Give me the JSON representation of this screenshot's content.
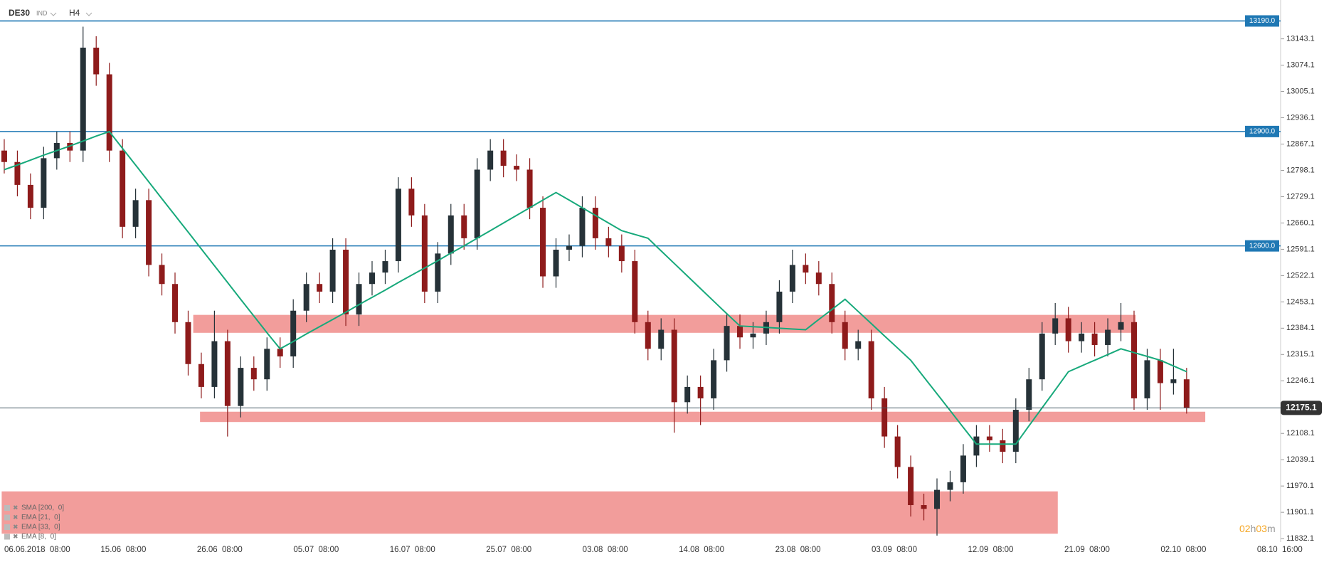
{
  "chart_data": {
    "type": "candlestick",
    "symbol": "DE30",
    "symbol_tag": "IND",
    "interval": "H4",
    "x_labels": [
      "06.06.2018  08:00",
      "15.06  08:00",
      "26.06  08:00",
      "05.07  08:00",
      "16.07  08:00",
      "25.07  08:00",
      "03.08  08:00",
      "14.08  08:00",
      "23.08  08:00",
      "03.09  08:00",
      "12.09  08:00",
      "21.09  08:00",
      "02.10  08:00",
      "08.10  16:00"
    ],
    "open": [
      12850,
      12820,
      12760,
      12700,
      12830,
      12870,
      12850,
      13120,
      13050,
      12850,
      12650,
      12720,
      12550,
      12500,
      12400,
      12290,
      12230,
      12350,
      12180,
      12280,
      12250,
      12330,
      12310,
      12430,
      12500,
      12480,
      12590,
      12420,
      12500,
      12530,
      12560,
      12750,
      12680,
      12480,
      12580,
      12680,
      12620,
      12800,
      12850,
      12810,
      12800,
      12700,
      12520,
      12590,
      12600,
      12700,
      12620,
      12600,
      12560,
      12400,
      12330,
      12380,
      12190,
      12230,
      12200,
      12300,
      12390,
      12360,
      12370,
      12400,
      12480,
      12550,
      12530,
      12500,
      12400,
      12330,
      12350,
      12200,
      12100,
      12020,
      11920,
      11910,
      11960,
      11980,
      12050,
      12100,
      12090,
      12060,
      12170,
      12250,
      12370,
      12410,
      12350,
      12370,
      12340,
      12380,
      12400,
      12200,
      12300,
      12240,
      12250
    ],
    "high": [
      12880,
      12850,
      12790,
      12860,
      12900,
      12900,
      13175,
      13150,
      13080,
      12880,
      12750,
      12750,
      12580,
      12530,
      12430,
      12320,
      12430,
      12380,
      12310,
      12310,
      12360,
      12360,
      12460,
      12530,
      12530,
      12620,
      12620,
      12530,
      12560,
      12590,
      12780,
      12780,
      12710,
      12610,
      12710,
      12710,
      12830,
      12880,
      12880,
      12840,
      12830,
      12730,
      12620,
      12630,
      12730,
      12730,
      12650,
      12630,
      12590,
      12430,
      12410,
      12410,
      12260,
      12260,
      12330,
      12420,
      12420,
      12400,
      12430,
      12510,
      12590,
      12580,
      12560,
      12530,
      12430,
      12380,
      12380,
      12230,
      12130,
      12050,
      11950,
      11990,
      12010,
      12080,
      12130,
      12130,
      12120,
      12200,
      12280,
      12400,
      12450,
      12440,
      12400,
      12400,
      12410,
      12450,
      12430,
      12330,
      12330,
      12330,
      12280
    ],
    "low": [
      12790,
      12730,
      12670,
      12670,
      12800,
      12820,
      12820,
      13020,
      12820,
      12620,
      12620,
      12520,
      12470,
      12370,
      12260,
      12200,
      12200,
      12100,
      12150,
      12220,
      12220,
      12280,
      12280,
      12400,
      12450,
      12450,
      12390,
      12390,
      12470,
      12500,
      12530,
      12650,
      12450,
      12450,
      12550,
      12590,
      12590,
      12770,
      12780,
      12770,
      12670,
      12490,
      12490,
      12560,
      12570,
      12590,
      12570,
      12530,
      12370,
      12300,
      12300,
      12110,
      12160,
      12130,
      12170,
      12270,
      12330,
      12330,
      12340,
      12370,
      12450,
      12500,
      12470,
      12370,
      12300,
      12300,
      12170,
      12070,
      11990,
      11890,
      11880,
      11840,
      11930,
      11950,
      12020,
      12060,
      12030,
      12030,
      12140,
      12220,
      12340,
      12320,
      12320,
      12310,
      12310,
      12350,
      12170,
      12170,
      12170,
      12210,
      12160
    ],
    "close": [
      12820,
      12760,
      12700,
      12830,
      12870,
      12850,
      13120,
      13050,
      12850,
      12650,
      12720,
      12550,
      12500,
      12400,
      12290,
      12230,
      12350,
      12180,
      12280,
      12250,
      12330,
      12310,
      12430,
      12500,
      12480,
      12590,
      12420,
      12500,
      12530,
      12560,
      12750,
      12680,
      12480,
      12580,
      12680,
      12620,
      12800,
      12850,
      12810,
      12800,
      12700,
      12520,
      12590,
      12600,
      12700,
      12620,
      12600,
      12560,
      12400,
      12330,
      12380,
      12190,
      12230,
      12200,
      12300,
      12390,
      12360,
      12370,
      12400,
      12480,
      12550,
      12530,
      12500,
      12400,
      12330,
      12350,
      12200,
      12100,
      12020,
      11920,
      11910,
      11960,
      11980,
      12050,
      12100,
      12090,
      12060,
      12170,
      12250,
      12370,
      12410,
      12350,
      12370,
      12340,
      12380,
      12400,
      12200,
      12300,
      12240,
      12250,
      12175
    ],
    "up_color": "#263238",
    "down_color": "#8e1b1b",
    "ema": {
      "color": "#17a97b",
      "values": [
        12800,
        12812,
        12825,
        12838,
        12850,
        12862,
        12875,
        12888,
        12900,
        12856,
        12812,
        12768,
        12724,
        12680,
        12636,
        12592,
        12548,
        12504,
        12460,
        12416,
        12372,
        12330,
        12349,
        12369,
        12388,
        12407,
        12426,
        12446,
        12465,
        12484,
        12504,
        12523,
        12542,
        12561,
        12581,
        12600,
        12620,
        12640,
        12660,
        12680,
        12700,
        12720,
        12740,
        12720,
        12700,
        12680,
        12660,
        12640,
        12630,
        12620,
        12587,
        12554,
        12521,
        12488,
        12455,
        12422,
        12390,
        12388,
        12386,
        12384,
        12382,
        12380,
        12407,
        12433,
        12460,
        12428,
        12396,
        12364,
        12332,
        12300,
        12256,
        12212,
        12168,
        12124,
        12080,
        12080,
        12080,
        12080,
        12128,
        12175,
        12222,
        12270,
        12285,
        12300,
        12315,
        12330,
        12320,
        12310,
        12300,
        12285,
        12270
      ]
    },
    "levels": [
      {
        "value": 13190,
        "label": "13190.0"
      },
      {
        "value": 12900,
        "label": "12900.0"
      },
      {
        "value": 12600,
        "label": "12600.0"
      }
    ],
    "level_color": "#1f78b4",
    "zones": [
      {
        "low": 12372,
        "high": 12419
      },
      {
        "low": 12138,
        "high": 12165
      },
      {
        "low": 11845,
        "high": 11956
      }
    ],
    "zone_color": "#f29d9b",
    "current_price": 12175.1,
    "ylim": [
      11823,
      13245
    ],
    "yticks": [
      11832.1,
      11901.1,
      11970.1,
      12039.1,
      12108.1,
      12246.1,
      12315.1,
      12384.1,
      12453.1,
      12522.1,
      12591.1,
      12660.1,
      12729.1,
      12798.1,
      12867.1,
      12936.1,
      13005.1,
      13074.1,
      13143.1
    ],
    "indicators": [
      "SMA [200,  0]",
      "EMA [21,  0]",
      "EMA [33,  0]",
      "EMA [8,  0]"
    ],
    "countdown": {
      "hours": "02",
      "hours_unit": "h",
      "minutes": "03",
      "minutes_unit": "m"
    }
  }
}
